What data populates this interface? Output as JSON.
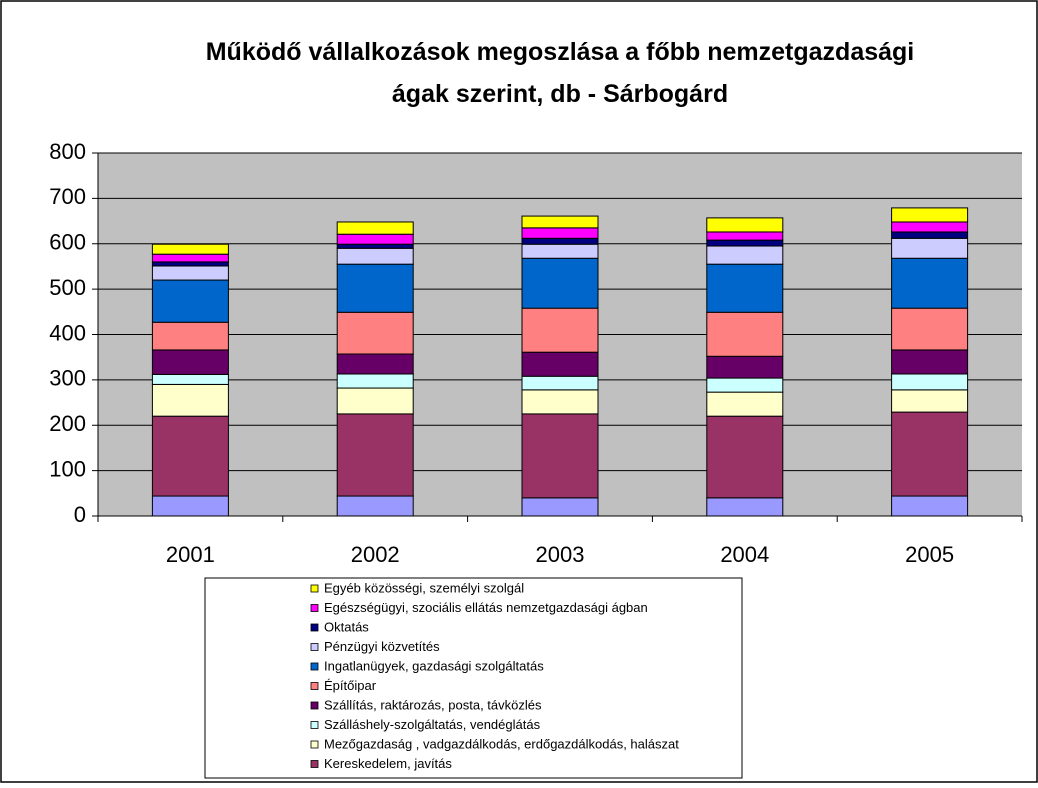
{
  "chart_data": {
    "type": "stacked_bar",
    "title": "Működő vállalkozások megoszlása a főbb nemzetgazdasági ágak szerint, db - Sárbogárd",
    "categories": [
      "2001",
      "2002",
      "2003",
      "2004",
      "2005"
    ],
    "ylim": [
      0,
      800
    ],
    "yticks": [
      0,
      100,
      200,
      300,
      400,
      500,
      600,
      700,
      800
    ],
    "grid": true,
    "series": [
      {
        "name": null,
        "color": "#9999ff",
        "values": [
          44,
          44,
          40,
          40,
          44
        ]
      },
      {
        "name": "Kereskedelem, javítás",
        "color": "#993366",
        "values": [
          176,
          181,
          185,
          180,
          185
        ]
      },
      {
        "name": "Mezőgazdaság , vadgazdálkodás, erdőgazdálkodás, halászat",
        "color": "#ffffcc",
        "values": [
          70,
          57,
          53,
          53,
          49
        ]
      },
      {
        "name": "Szálláshely-szolgáltatás, vendéglátás",
        "color": "#ccffff",
        "values": [
          22,
          31,
          30,
          31,
          35
        ]
      },
      {
        "name": "Szállítás, raktározás, posta, távközlés",
        "color": "#660066",
        "values": [
          54,
          44,
          53,
          48,
          53
        ]
      },
      {
        "name": "Építőipar",
        "color": "#ff8080",
        "values": [
          61,
          92,
          97,
          97,
          92
        ]
      },
      {
        "name": "Ingatlanügyek, gazdasági szolgáltatás",
        "color": "#0066cc",
        "values": [
          93,
          106,
          110,
          106,
          110
        ]
      },
      {
        "name": "Pénzügyi közvetítés",
        "color": "#ccccff",
        "values": [
          31,
          35,
          31,
          40,
          44
        ]
      },
      {
        "name": "Oktatás",
        "color": "#000080",
        "values": [
          9,
          9,
          13,
          13,
          14
        ]
      },
      {
        "name": "Egészségügyi, szociális ellátás nemzetgazdasági ágban",
        "color": "#ff00ff",
        "values": [
          17,
          22,
          23,
          18,
          22
        ]
      },
      {
        "name": "Egyéb közösségi, személyi szolgál",
        "color": "#ffff00",
        "values": [
          22,
          27,
          26,
          31,
          31
        ]
      }
    ]
  }
}
